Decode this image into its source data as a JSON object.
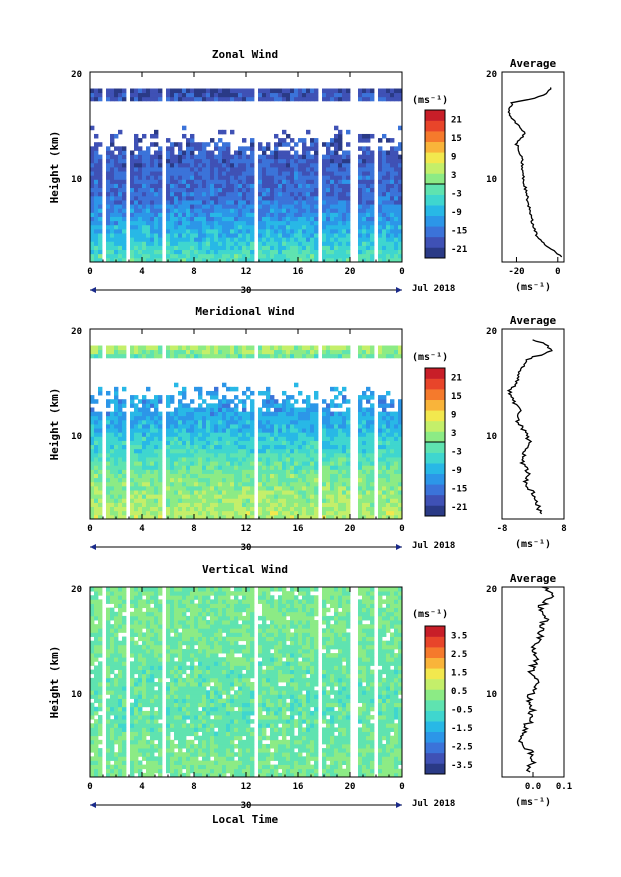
{
  "figure": {
    "date_label": "Jul 2018",
    "xlabel_main": "Local Time",
    "ylabel": "Height (km)",
    "avg_title": "Average",
    "unit_label": "(ms⁻¹)",
    "day_label": "30"
  },
  "chart_data": [
    {
      "type": "heatmap",
      "title": "Zonal Wind",
      "xlabel": "",
      "ylabel": "Height (km)",
      "x_ticks": [
        "0",
        "4",
        "8",
        "12",
        "16",
        "20",
        "0"
      ],
      "x_range": [
        0,
        24
      ],
      "y_ticks": [
        "20",
        "10"
      ],
      "y_range": [
        1.5,
        20
      ],
      "colorbar": {
        "unit": "(ms⁻¹)",
        "ticks": [
          "21",
          "15",
          "9",
          "3",
          "-3",
          "-9",
          "-15",
          "-21"
        ],
        "range": [
          -24,
          24
        ],
        "levels": [
          "#2a3a86",
          "#3f51b5",
          "#3b73d9",
          "#2c96e8",
          "#28b8e6",
          "#3fd6cf",
          "#5fe3b0",
          "#8ceb85",
          "#c4ef6a",
          "#f2e84e",
          "#f9b43a",
          "#f57a2c",
          "#e8452a",
          "#c81e28"
        ]
      },
      "data_gaps_local_time": [
        1.2,
        3.0,
        5.8,
        12.8,
        17.7,
        20.3,
        22.0
      ],
      "field": {
        "data_top_km": 18.5,
        "profile_km": [
          2,
          4,
          6,
          8,
          10,
          12,
          14,
          16,
          18
        ],
        "profile_ms": [
          -3,
          -8,
          -12,
          -16,
          -17,
          -18,
          -19,
          -14,
          -20
        ]
      },
      "average": {
        "title": "Average",
        "xlabel": "(ms⁻¹)",
        "x_ticks": [
          "-20",
          "0"
        ],
        "x_range": [
          -27,
          3
        ],
        "y_ticks": [
          "20",
          "10"
        ],
        "y_range": [
          1.5,
          20
        ],
        "height_km": [
          2,
          3,
          4,
          5,
          6,
          7,
          8,
          9,
          10,
          11,
          12,
          13,
          14,
          15,
          16,
          17,
          17.5,
          18,
          18.5
        ],
        "wind_ms": [
          2,
          -5,
          -10,
          -12,
          -13,
          -14,
          -15,
          -16,
          -17,
          -17,
          -18,
          -20,
          -16,
          -20,
          -24,
          -22,
          -10,
          -5,
          -3
        ]
      }
    },
    {
      "type": "heatmap",
      "title": "Meridional Wind",
      "xlabel": "",
      "ylabel": "Height (km)",
      "x_ticks": [
        "0",
        "4",
        "8",
        "12",
        "16",
        "20",
        "0"
      ],
      "x_range": [
        0,
        24
      ],
      "y_ticks": [
        "20",
        "10"
      ],
      "y_range": [
        1.5,
        20
      ],
      "colorbar": {
        "unit": "(ms⁻¹)",
        "ticks": [
          "21",
          "15",
          "9",
          "3",
          "-3",
          "-9",
          "-15",
          "-21"
        ],
        "range": [
          -24,
          24
        ],
        "levels": [
          "#2a3a86",
          "#3f51b5",
          "#3b73d9",
          "#2c96e8",
          "#28b8e6",
          "#3fd6cf",
          "#5fe3b0",
          "#8ceb85",
          "#c4ef6a",
          "#f2e84e",
          "#f9b43a",
          "#f57a2c",
          "#e8452a",
          "#c81e28"
        ]
      },
      "data_gaps_local_time": [
        1.2,
        3.0,
        5.8,
        12.8,
        17.7,
        20.3,
        22.0
      ],
      "field": {
        "data_top_km": 18.5,
        "profile_km": [
          2,
          4,
          6,
          8,
          10,
          12,
          14,
          16,
          18
        ],
        "profile_ms": [
          4,
          2,
          0,
          -4,
          -8,
          -11,
          -11,
          -8,
          3
        ]
      },
      "average": {
        "title": "Average",
        "xlabel": "(ms⁻¹)",
        "x_ticks": [
          "-8",
          "8"
        ],
        "x_range": [
          -8,
          8
        ],
        "y_ticks": [
          "20",
          "10"
        ],
        "y_range": [
          1.5,
          20
        ],
        "height_km": [
          2,
          3,
          4,
          5,
          6,
          7,
          8,
          9,
          10,
          11,
          12,
          13,
          14,
          15,
          16,
          17,
          17.5,
          18,
          18.5,
          19
        ],
        "wind_ms": [
          2,
          1,
          0,
          -2,
          -1,
          -3,
          -2,
          -1,
          -2,
          -4,
          -3,
          -5,
          -6,
          -4,
          -3,
          -2,
          2,
          5,
          3,
          0
        ]
      }
    },
    {
      "type": "heatmap",
      "title": "Vertical Wind",
      "xlabel": "Local Time",
      "ylabel": "Height (km)",
      "x_ticks": [
        "0",
        "4",
        "8",
        "12",
        "16",
        "20",
        "0"
      ],
      "x_range": [
        0,
        24
      ],
      "y_ticks": [
        "20",
        "10"
      ],
      "y_range": [
        1.5,
        20
      ],
      "colorbar": {
        "unit": "(ms⁻¹)",
        "ticks": [
          "3.5",
          "2.5",
          "1.5",
          "0.5",
          "-0.5",
          "-1.5",
          "-2.5",
          "-3.5"
        ],
        "range": [
          -4,
          4
        ],
        "levels": [
          "#2a3a86",
          "#3f51b5",
          "#3b73d9",
          "#2c96e8",
          "#28b8e6",
          "#3fd6cf",
          "#5fe3b0",
          "#8ceb85",
          "#c4ef6a",
          "#f2e84e",
          "#f9b43a",
          "#f57a2c",
          "#e8452a",
          "#c81e28"
        ]
      },
      "data_gaps_local_time": [
        1.2,
        3.0,
        5.8,
        12.8,
        17.7,
        20.3,
        22.0
      ],
      "field": {
        "data_top_km": 20,
        "profile_km": [
          2,
          4,
          6,
          8,
          10,
          12,
          14,
          16,
          18,
          20
        ],
        "profile_ms": [
          0.1,
          0.0,
          -0.2,
          -0.3,
          -0.2,
          -0.2,
          -0.1,
          0.0,
          0.1,
          0.1
        ]
      },
      "average": {
        "title": "Average",
        "xlabel": "(ms⁻¹)",
        "x_ticks": [
          "0.0",
          "0.1"
        ],
        "x_range": [
          -0.1,
          0.1
        ],
        "y_ticks": [
          "20",
          "10"
        ],
        "y_range": [
          1.5,
          20
        ],
        "height_km": [
          2,
          3,
          4,
          5,
          6,
          7,
          8,
          9,
          10,
          11,
          12,
          13,
          14,
          15,
          16,
          17,
          18,
          19,
          20
        ],
        "wind_ms": [
          -0.02,
          0.0,
          -0.01,
          -0.04,
          -0.03,
          -0.01,
          0.0,
          -0.01,
          0.0,
          0.01,
          -0.01,
          0.02,
          0.0,
          0.02,
          0.03,
          0.04,
          0.02,
          0.06,
          0.04
        ]
      }
    }
  ]
}
